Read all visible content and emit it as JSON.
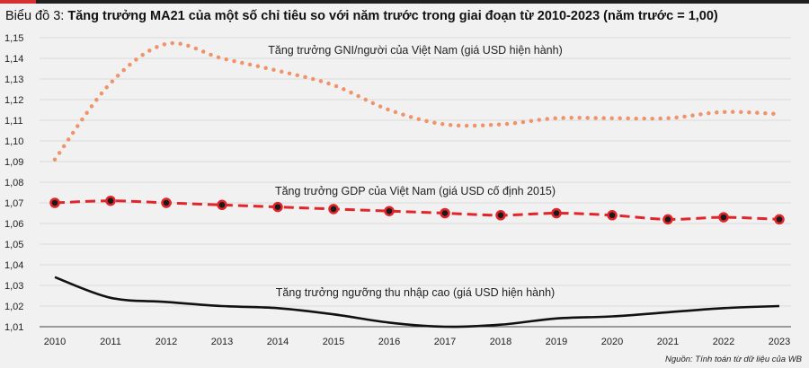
{
  "header": {
    "label": "Biểu đồ 3:",
    "title": "Tăng trưởng MA21 của một số chỉ tiêu so với năm trước trong giai đoạn từ 2010-2023 (năm trước = 1,00)"
  },
  "source": "Nguồn: Tính toán từ dữ liệu của WB",
  "colors": {
    "gni": "#f0936a",
    "gdp": "#e0262b",
    "high_income": "#111111",
    "grid": "#d4d4d4"
  },
  "chart_data": {
    "type": "line",
    "x": [
      "2010",
      "2011",
      "2012",
      "2013",
      "2014",
      "2015",
      "2016",
      "2017",
      "2018",
      "2019",
      "2020",
      "2021",
      "2022",
      "2023"
    ],
    "ylim": [
      1.01,
      1.15
    ],
    "yticks": [
      "1,01",
      "1,02",
      "1,03",
      "1,04",
      "1,05",
      "1,06",
      "1,07",
      "1,08",
      "1,09",
      "1,10",
      "1,11",
      "1,12",
      "1,13",
      "1,14",
      "1,15"
    ],
    "grid": true,
    "series": [
      {
        "name": "Tăng trưởng GNI/người của Việt Nam (giá USD hiện hành)",
        "key": "gni",
        "style": "dotted",
        "values": [
          1.091,
          1.128,
          1.147,
          1.14,
          1.134,
          1.127,
          1.115,
          1.108,
          1.108,
          1.111,
          1.111,
          1.111,
          1.114,
          1.113
        ]
      },
      {
        "name": "Tăng trưởng GDP của Việt Nam (giá USD cố định 2015)",
        "key": "gdp",
        "style": "dashed-markers",
        "values": [
          1.07,
          1.071,
          1.07,
          1.069,
          1.068,
          1.067,
          1.066,
          1.065,
          1.064,
          1.065,
          1.064,
          1.062,
          1.063,
          1.062
        ]
      },
      {
        "name": "Tăng trưởng ngưỡng thu nhập cao (giá USD hiện hành)",
        "key": "high_income",
        "style": "solid",
        "values": [
          1.034,
          1.024,
          1.022,
          1.02,
          1.019,
          1.016,
          1.012,
          1.01,
          1.011,
          1.014,
          1.015,
          1.017,
          1.019,
          1.02
        ]
      }
    ]
  }
}
